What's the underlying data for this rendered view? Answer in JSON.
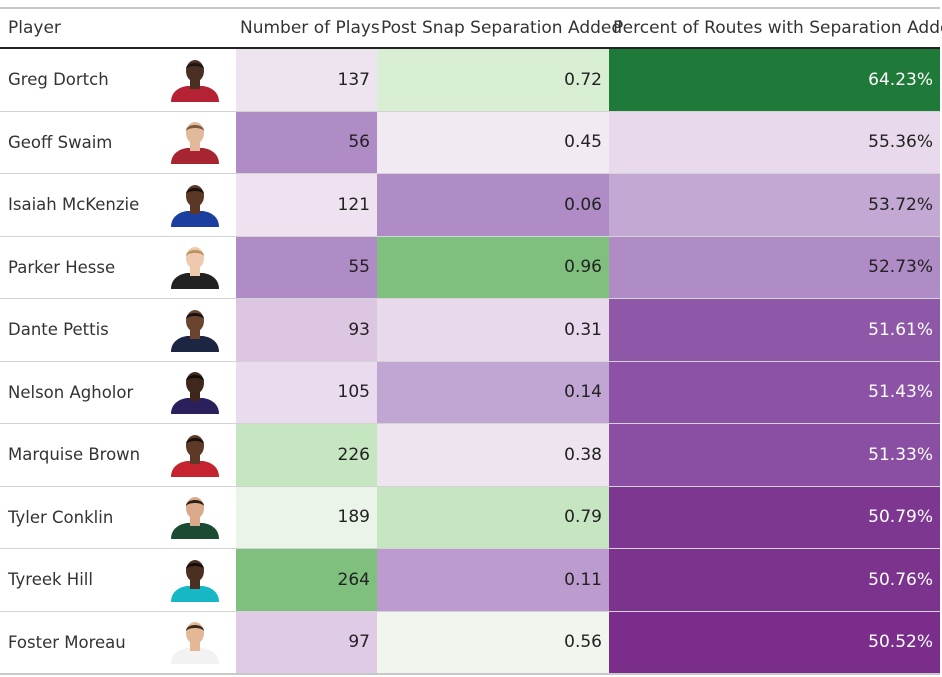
{
  "columns": {
    "player": "Player",
    "plays": "Number of Plays",
    "sep": "Post Snap Separation Added",
    "pct": "Percent of Routes with Separation Added"
  },
  "chart_data": {
    "type": "table",
    "rows": [
      {
        "player": "Greg Dortch",
        "plays": "137",
        "sep": "0.72",
        "pct": "64.23%",
        "jersey": "#b52233",
        "skin": "#4a2f22",
        "hair": "#1d1410",
        "colors": {
          "plays": "#ede4f0",
          "sep": "#d9efd4",
          "pct": "#1f7a3a"
        },
        "light": [
          false,
          false,
          true
        ]
      },
      {
        "player": "Geoff Swaim",
        "plays": "56",
        "sep": "0.45",
        "pct": "55.36%",
        "jersey": "#a72530",
        "skin": "#e3b99b",
        "hair": "#7a5a40",
        "colors": {
          "plays": "#af8cc5",
          "sep": "#f1eaf3",
          "pct": "#e9d9ec"
        },
        "light": [
          false,
          false,
          false
        ]
      },
      {
        "player": "Isaiah McKenzie",
        "plays": "121",
        "sep": "0.06",
        "pct": "53.72%",
        "jersey": "#1b3f9e",
        "skin": "#5a3825",
        "hair": "#1b120d",
        "colors": {
          "plays": "#eee2f0",
          "sep": "#af8cc5",
          "pct": "#c4a8d4"
        },
        "light": [
          false,
          false,
          false
        ]
      },
      {
        "player": "Parker Hesse",
        "plays": "55",
        "sep": "0.96",
        "pct": "52.73%",
        "jersey": "#222222",
        "skin": "#efc9ad",
        "hair": "#b8925f",
        "colors": {
          "plays": "#af8cc5",
          "sep": "#7fc07e",
          "pct": "#b08cc6"
        },
        "light": [
          false,
          false,
          false
        ]
      },
      {
        "player": "Dante Pettis",
        "plays": "93",
        "sep": "0.31",
        "pct": "51.61%",
        "jersey": "#1c2541",
        "skin": "#6b4430",
        "hair": "#141010",
        "colors": {
          "plays": "#dcc6e2",
          "sep": "#e8d9ec",
          "pct": "#8f57a8"
        },
        "light": [
          false,
          false,
          true
        ]
      },
      {
        "player": "Nelson Agholor",
        "plays": "105",
        "sep": "0.14",
        "pct": "51.43%",
        "jersey": "#2b1f5c",
        "skin": "#3f271b",
        "hair": "#120c09",
        "colors": {
          "plays": "#e9dcee",
          "sep": "#c1a5d3",
          "pct": "#8c52a5"
        },
        "light": [
          false,
          false,
          true
        ]
      },
      {
        "player": "Marquise Brown",
        "plays": "226",
        "sep": "0.38",
        "pct": "51.33%",
        "jersey": "#c4232f",
        "skin": "#5c3a27",
        "hair": "#17100c",
        "colors": {
          "plays": "#c6e6c1",
          "sep": "#ede4f0",
          "pct": "#8a4fa3"
        },
        "light": [
          false,
          false,
          true
        ]
      },
      {
        "player": "Tyler Conklin",
        "plays": "189",
        "sep": "0.79",
        "pct": "50.79%",
        "jersey": "#1d4a32",
        "skin": "#d9a98a",
        "hair": "#2d1f16",
        "colors": {
          "plays": "#ebf4e8",
          "sep": "#c6e6c1",
          "pct": "#7d3790"
        },
        "light": [
          false,
          false,
          true
        ]
      },
      {
        "player": "Tyreek Hill",
        "plays": "264",
        "sep": "0.11",
        "pct": "50.76%",
        "jersey": "#17b8c6",
        "skin": "#4b2f21",
        "hair": "#130d0a",
        "colors": {
          "plays": "#7fc07e",
          "sep": "#bc9ccf",
          "pct": "#7b338e"
        },
        "light": [
          false,
          false,
          true
        ]
      },
      {
        "player": "Foster Moreau",
        "plays": "97",
        "sep": "0.56",
        "pct": "50.52%",
        "jersey": "#f2f2f2",
        "skin": "#e4b896",
        "hair": "#3b2a1d",
        "colors": {
          "plays": "#dfcbe6",
          "sep": "#f0f6ee",
          "pct": "#7a2d8b"
        },
        "light": [
          false,
          false,
          true
        ]
      }
    ]
  }
}
